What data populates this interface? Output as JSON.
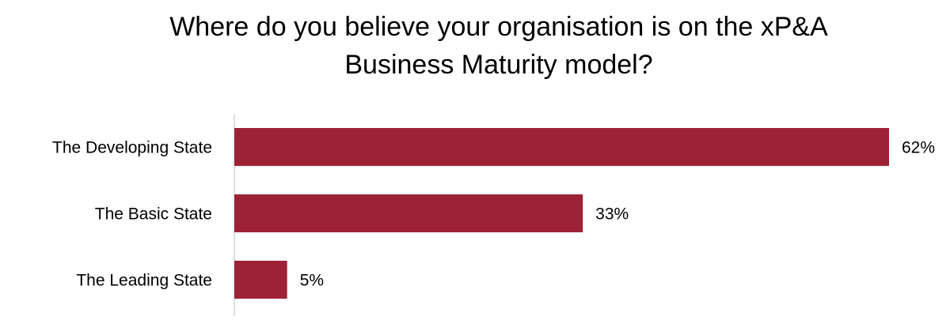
{
  "chart_data": {
    "type": "bar",
    "orientation": "horizontal",
    "title": "Where do you believe your organisation is on the xP&A Business Maturity model?",
    "categories": [
      "The Developing State",
      "The Basic State",
      "The Leading State"
    ],
    "values": [
      62,
      33,
      5
    ],
    "value_labels": [
      "62%",
      "33%",
      "5%"
    ],
    "color": "#9e2236"
  }
}
